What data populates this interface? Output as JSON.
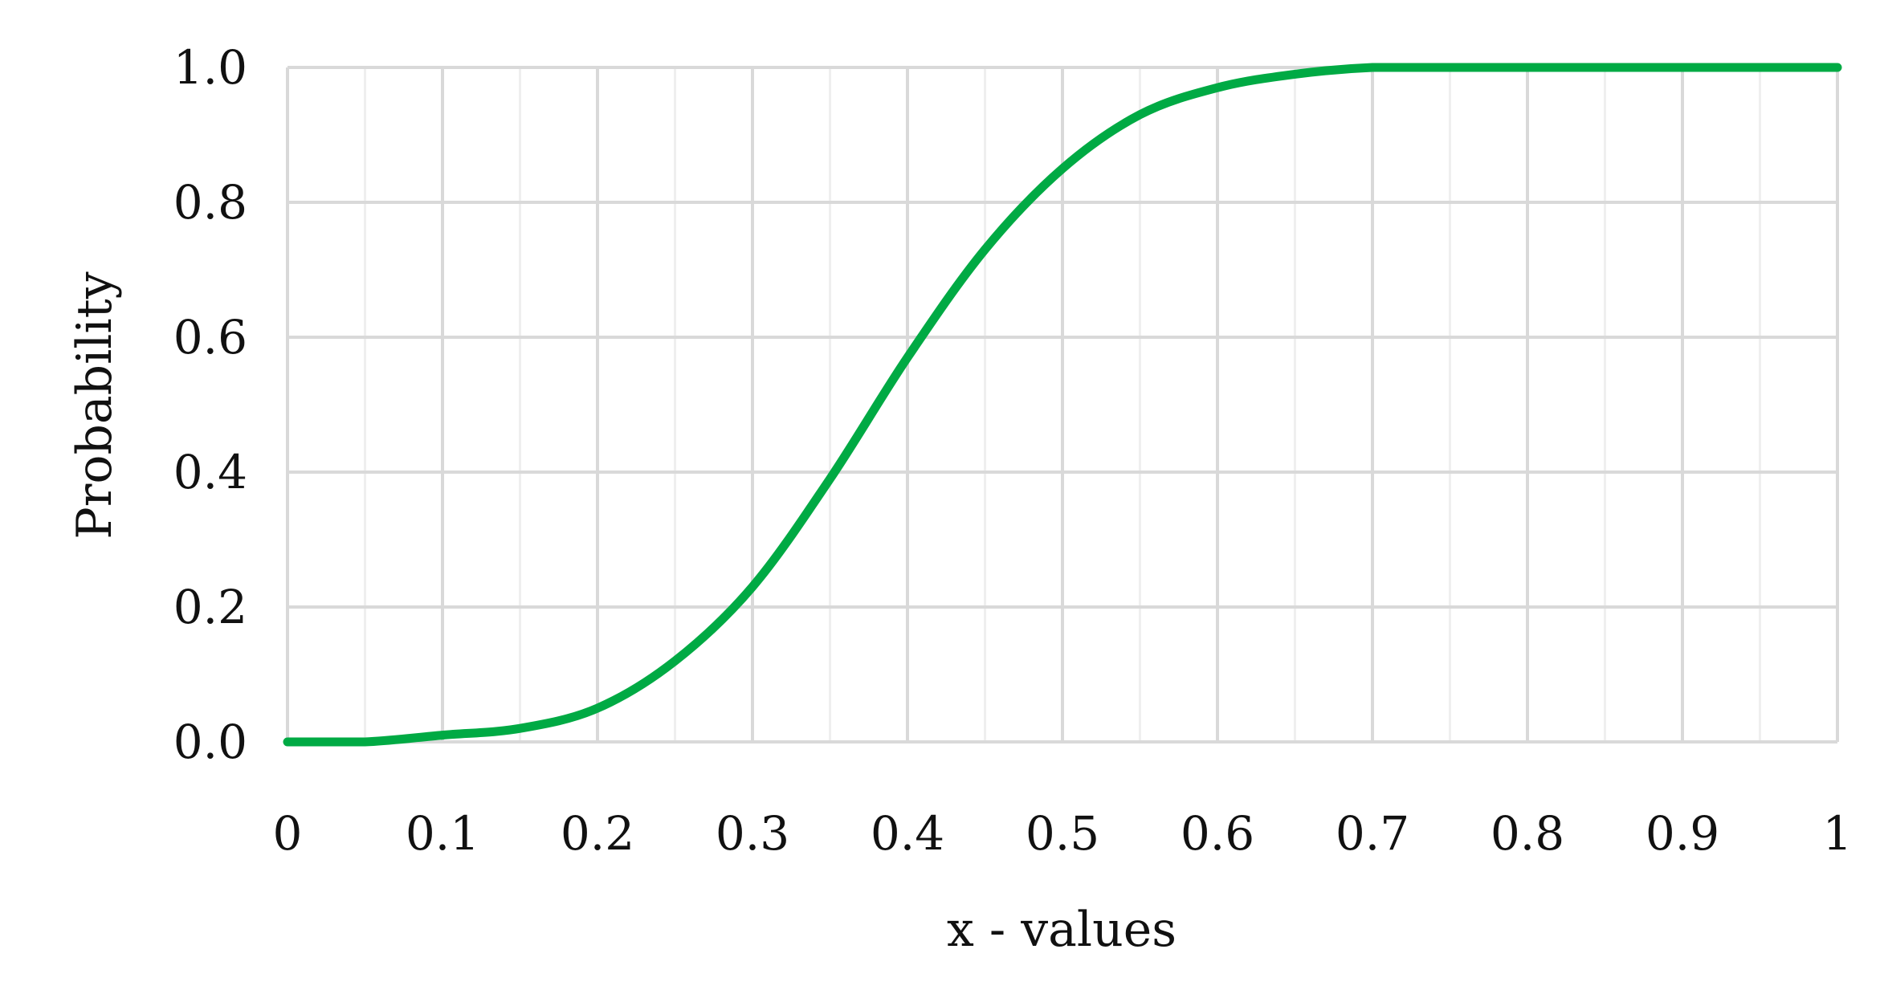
{
  "chart_data": {
    "type": "line",
    "title": "",
    "xlabel": "x - values",
    "ylabel": "Probability",
    "xlim": [
      0,
      1
    ],
    "ylim": [
      0,
      1
    ],
    "x_ticks": [
      "0",
      "0.1",
      "0.2",
      "0.3",
      "0.4",
      "0.5",
      "0.6",
      "0.7",
      "0.8",
      "0.9",
      "1"
    ],
    "y_ticks": [
      "0.0",
      "0.2",
      "0.4",
      "0.6",
      "0.8",
      "1.0"
    ],
    "x_tick_values": [
      0,
      0.1,
      0.2,
      0.3,
      0.4,
      0.5,
      0.6,
      0.7,
      0.8,
      0.9,
      1
    ],
    "y_tick_values": [
      0,
      0.2,
      0.4,
      0.6,
      0.8,
      1.0
    ],
    "x_minor_grid": [
      0.05,
      0.15,
      0.25,
      0.35,
      0.45,
      0.55,
      0.65,
      0.75,
      0.85,
      0.95
    ],
    "grid": true,
    "legend": "none",
    "colors": {
      "series": "#00aa44",
      "grid_major": "#d9d9d9",
      "grid_minor": "#efefef",
      "text": "#111111"
    },
    "series": [
      {
        "x": [
          0,
          0.05,
          0.1,
          0.15,
          0.2,
          0.25,
          0.3,
          0.35,
          0.4,
          0.45,
          0.5,
          0.55,
          0.6,
          0.65,
          0.7,
          0.75,
          0.8,
          0.85,
          0.9,
          0.95,
          1
        ],
        "y": [
          0.0,
          0.0,
          0.01,
          0.02,
          0.05,
          0.12,
          0.23,
          0.39,
          0.57,
          0.73,
          0.85,
          0.93,
          0.97,
          0.99,
          1.0,
          1.0,
          1.0,
          1.0,
          1.0,
          1.0,
          1.0
        ]
      }
    ]
  }
}
